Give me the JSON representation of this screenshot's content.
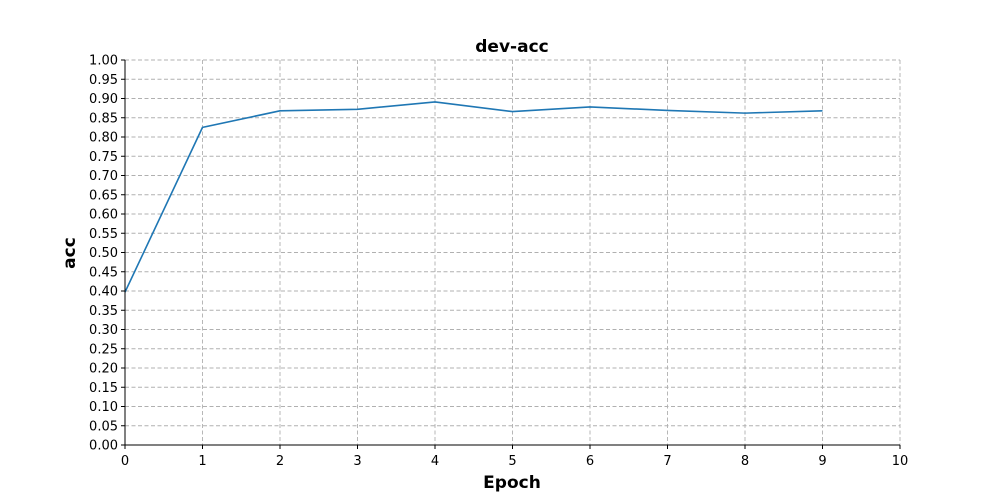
{
  "chart_data": {
    "type": "line",
    "title": "dev-acc",
    "xlabel": "Epoch",
    "ylabel": "acc",
    "xlim": [
      0,
      10
    ],
    "ylim": [
      0,
      1.0
    ],
    "x_ticks": [
      "0",
      "1",
      "2",
      "3",
      "4",
      "5",
      "6",
      "7",
      "8",
      "9",
      "10"
    ],
    "y_ticks": [
      "0.00",
      "0.05",
      "0.10",
      "0.15",
      "0.20",
      "0.25",
      "0.30",
      "0.35",
      "0.40",
      "0.45",
      "0.50",
      "0.55",
      "0.60",
      "0.65",
      "0.70",
      "0.75",
      "0.80",
      "0.85",
      "0.90",
      "0.95",
      "1.00"
    ],
    "grid": true,
    "series": [
      {
        "color": "#1f77b4",
        "x": [
          0,
          1,
          2,
          3,
          4,
          5,
          6,
          7,
          8,
          9
        ],
        "y": [
          0.397,
          0.825,
          0.868,
          0.872,
          0.891,
          0.866,
          0.878,
          0.869,
          0.862,
          0.868
        ]
      }
    ]
  }
}
